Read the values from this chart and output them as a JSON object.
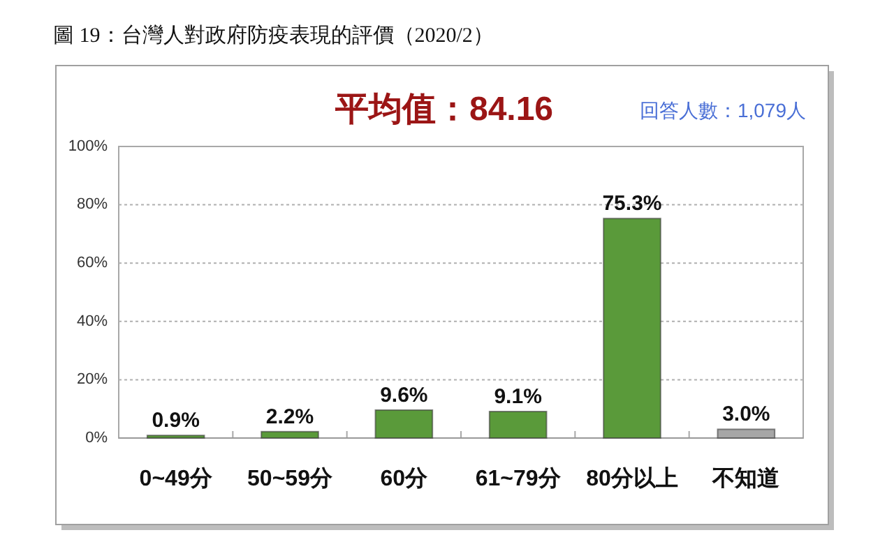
{
  "chart_data": {
    "type": "bar",
    "title": "圖 19：台灣人對政府防疫表現的評價（2020/2）",
    "subtitle": "平均值：84.16",
    "annotations": [
      "回答人數：1,079人"
    ],
    "categories": [
      "0~49分",
      "50~59分",
      "60分",
      "61~79分",
      "80分以上",
      "不知道"
    ],
    "values": [
      0.9,
      2.2,
      9.6,
      9.1,
      75.3,
      3.0
    ],
    "colors": [
      "#5a9a3a",
      "#5a9a3a",
      "#5a9a3a",
      "#5a9a3a",
      "#5a9a3a",
      "#a6a6a6"
    ],
    "value_labels": [
      "0.9%",
      "2.2%",
      "9.6%",
      "9.1%",
      "75.3%",
      "3.0%"
    ],
    "ylim": [
      0,
      100
    ],
    "yticks": [
      {
        "value": 0,
        "label": "0%"
      },
      {
        "value": 20,
        "label": "20%"
      },
      {
        "value": 40,
        "label": "40%"
      },
      {
        "value": 60,
        "label": "60%"
      },
      {
        "value": 80,
        "label": "80%"
      },
      {
        "value": 100,
        "label": "100%"
      }
    ],
    "grid": "y"
  }
}
